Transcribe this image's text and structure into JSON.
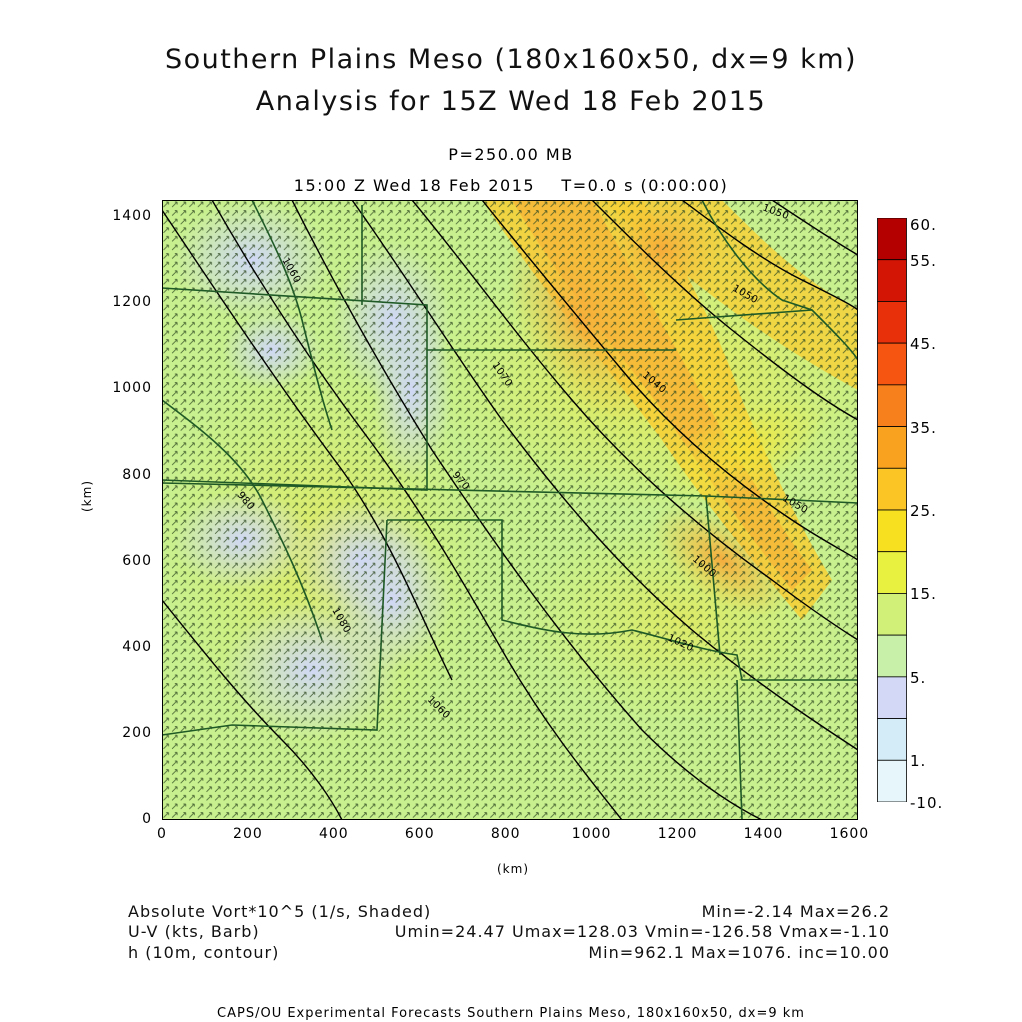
{
  "title": {
    "line1": "Southern Plains Meso (180x160x50, dx=9 km)",
    "line2": "Analysis for 15Z Wed 18 Feb 2015",
    "level": "P=250.00 MB",
    "time": "15:00 Z Wed 18 Feb 2015    T=0.0 s (0:00:00)"
  },
  "chart_data": {
    "type": "heatmap",
    "x_axis": {
      "label": "(km)",
      "range": [
        0,
        1620
      ],
      "ticks": [
        "0",
        "200",
        "400",
        "600",
        "800",
        "1000",
        "1200",
        "1400",
        "1600"
      ],
      "tick_values": [
        0,
        200,
        400,
        600,
        800,
        1000,
        1200,
        1400,
        1600
      ]
    },
    "y_axis": {
      "label": "(km)",
      "range": [
        0,
        1440
      ],
      "ticks": [
        "0",
        "200",
        "400",
        "600",
        "800",
        "1000",
        "1200",
        "1400"
      ],
      "tick_values": [
        0,
        200,
        400,
        600,
        800,
        1000,
        1200,
        1400
      ]
    },
    "colorbar": {
      "labels": [
        "60.",
        "55.",
        "45.",
        "35.",
        "25.",
        "15.",
        "5.",
        "1.",
        "-10."
      ],
      "colors": [
        "#b50000",
        "#d21505",
        "#e8300a",
        "#f55511",
        "#f7801c",
        "#f9a21f",
        "#fbc526",
        "#f7e020",
        "#e8f040",
        "#d0f078",
        "#c8f0a8",
        "#d2d8f6",
        "#d4ecf7",
        "#e6f6fb"
      ]
    },
    "contour_labels": [
      "1060",
      "1070",
      "1040",
      "1050",
      "1000",
      "1020",
      "980",
      "970",
      "1060",
      "1050",
      "1080",
      "1050"
    ],
    "fields": {
      "shaded": "Absolute Vort*10^5 (1/s, Shaded)",
      "barb": "U-V (kts, Barb)",
      "contour": "h (10m, contour)"
    },
    "stats": {
      "shaded": "Min=-2.14 Max=26.2",
      "barb": "Umin=24.47 Umax=128.03 Vmin=-126.58 Vmax=-1.10",
      "contour": "Min=962.1 Max=1076. inc=10.00"
    }
  },
  "footer": {
    "credit": "CAPS/OU Experimental Forecasts  Southern Plains Meso, 180x160x50, dx=9 km"
  }
}
